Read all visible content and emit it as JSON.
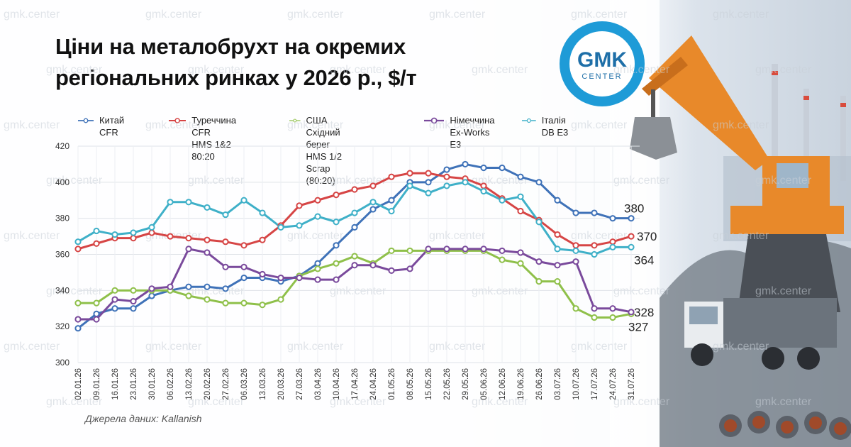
{
  "title_line1": "Ціни на металобрухт на окремих",
  "title_line2": "регіональних ринках у 2026 р., $/т",
  "logo": {
    "main": "GMK",
    "sub": "CENTER",
    "ring_color": "#1e9bd7"
  },
  "watermark": "gmk.center",
  "source": "Джерела даних: Kallanish",
  "legend": [
    {
      "line1": "Китай CFR",
      "line2": "",
      "color": "#3f72b8"
    },
    {
      "line1": "Туреччина CFR",
      "line2": "HMS 1&2 80:20",
      "color": "#d64545"
    },
    {
      "line1": "США Східний берег",
      "line2": "HMS 1/2 Scrap (80:20)",
      "color": "#8fc04a"
    },
    {
      "line1": "Німеччина",
      "line2": "Ex-Works E3",
      "color": "#7a4a9c"
    },
    {
      "line1": "Італія DB E3",
      "line2": "",
      "color": "#3fb0c8"
    }
  ],
  "chart_data": {
    "type": "line",
    "ylim": [
      300,
      420
    ],
    "yticks": [
      300,
      320,
      340,
      360,
      380,
      400,
      420
    ],
    "grid": true,
    "x": [
      "02.01.26",
      "09.01.26",
      "16.01.26",
      "23.01.26",
      "30.01.26",
      "06.02.26",
      "13.02.26",
      "20.02.26",
      "27.02.26",
      "06.03.26",
      "13.03.26",
      "20.03.26",
      "27.03.26",
      "03.04.26",
      "10.04.26",
      "17.04.26",
      "24.04.26",
      "01.05.26",
      "08.05.26",
      "15.05.26",
      "22.05.26",
      "29.05.26",
      "05.06.26",
      "12.06.26",
      "19.06.26",
      "26.06.26",
      "03.07.26",
      "10.07.26",
      "17.07.26",
      "24.07.26",
      "31.07.26"
    ],
    "series": [
      {
        "name": "Китай CFR",
        "color": "#3f72b8",
        "end_label": "380",
        "values": [
          319,
          327,
          330,
          330,
          337,
          340,
          342,
          342,
          341,
          347,
          347,
          345,
          348,
          355,
          365,
          375,
          385,
          390,
          400,
          400,
          407,
          410,
          408,
          408,
          403,
          400,
          390,
          383,
          383,
          380,
          380
        ]
      },
      {
        "name": "Туреччина CFR HMS 1&2 80:20",
        "color": "#d64545",
        "end_label": "370",
        "values": [
          363,
          366,
          369,
          369,
          372,
          370,
          369,
          368,
          367,
          365,
          368,
          376,
          387,
          390,
          393,
          396,
          398,
          403,
          405,
          405,
          403,
          402,
          398,
          391,
          384,
          379,
          371,
          365,
          365,
          367,
          370
        ]
      },
      {
        "name": "США Східний берег HMS 1/2 Scrap (80:20)",
        "color": "#8fc04a",
        "end_label": "327",
        "values": [
          333,
          333,
          340,
          340,
          340,
          340,
          337,
          335,
          333,
          333,
          332,
          335,
          348,
          352,
          355,
          359,
          355,
          362,
          362,
          362,
          362,
          362,
          362,
          357,
          355,
          345,
          345,
          330,
          325,
          325,
          327
        ]
      },
      {
        "name": "Німеччина Ex-Works E3",
        "color": "#7a4a9c",
        "end_label": "328",
        "values": [
          324,
          324,
          335,
          334,
          341,
          342,
          363,
          361,
          353,
          353,
          349,
          347,
          347,
          346,
          346,
          354,
          354,
          351,
          352,
          363,
          363,
          363,
          363,
          362,
          361,
          356,
          354,
          356,
          330,
          330,
          328
        ]
      },
      {
        "name": "Італія DB E3",
        "color": "#3fb0c8",
        "end_label": "364",
        "values": [
          367,
          373,
          371,
          372,
          375,
          389,
          389,
          386,
          382,
          390,
          383,
          375,
          376,
          381,
          378,
          383,
          389,
          384,
          398,
          394,
          398,
          400,
          395,
          390,
          392,
          378,
          363,
          362,
          360,
          364,
          364
        ]
      }
    ]
  }
}
